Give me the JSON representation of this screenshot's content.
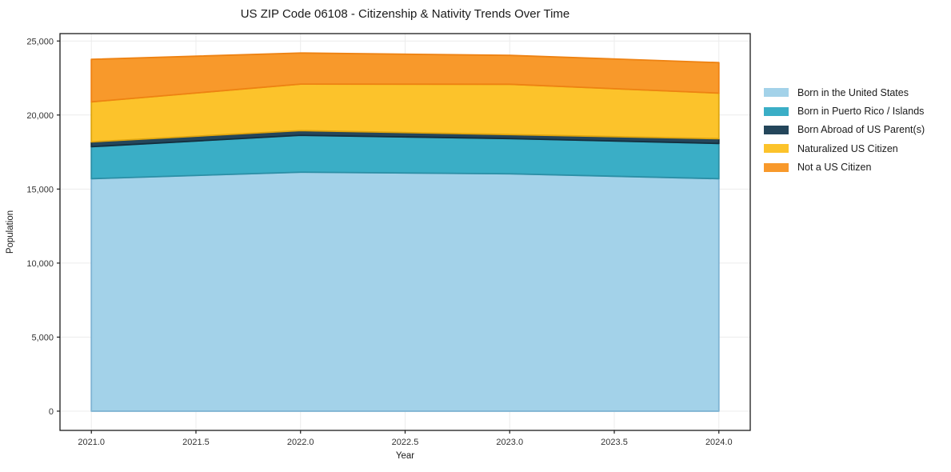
{
  "chart_data": {
    "type": "area",
    "stacked": true,
    "title": "US ZIP Code 06108 - Citizenship & Nativity Trends Over Time",
    "xlabel": "Year",
    "ylabel": "Population",
    "x": [
      2021,
      2022,
      2023,
      2024
    ],
    "series": [
      {
        "name": "Born in the United States",
        "values": [
          15700,
          16140,
          16030,
          15700
        ],
        "fill": "#A3D2E9",
        "edge": "#7FB4D3"
      },
      {
        "name": "Born in Puerto Rico / Islands",
        "values": [
          2160,
          2490,
          2380,
          2380
        ],
        "fill": "#3AAEC6",
        "edge": "#2B8FA6"
      },
      {
        "name": "Born Abroad of US Parent(s)",
        "values": [
          330,
          320,
          270,
          320
        ],
        "fill": "#24465B",
        "edge": "#142E3D"
      },
      {
        "name": "Naturalized US Citizen",
        "values": [
          2700,
          3140,
          3400,
          3080
        ],
        "fill": "#FCC32B",
        "edge": "#DFA50E"
      },
      {
        "name": "Not a US Citizen",
        "values": [
          2870,
          2100,
          1950,
          2060
        ],
        "fill": "#F8992B",
        "edge": "#EE8212"
      }
    ],
    "stacked_totals": [
      23760,
      24190,
      24030,
      23540
    ],
    "xlim": [
      2020.85,
      2024.15
    ],
    "ylim": [
      -1300,
      25500
    ],
    "xticks": {
      "values": [
        2021.0,
        2021.5,
        2022.0,
        2022.5,
        2023.0,
        2023.5,
        2024.0
      ],
      "labels": [
        "2021.0",
        "2021.5",
        "2022.0",
        "2022.5",
        "2023.0",
        "2023.5",
        "2024.0"
      ]
    },
    "yticks": {
      "values": [
        0,
        5000,
        10000,
        15000,
        20000,
        25000
      ],
      "labels": [
        "0",
        "5,000",
        "10,000",
        "15,000",
        "20,000",
        "25,000"
      ]
    },
    "grid": true,
    "grid_color": "#ececec",
    "frame_color": "#1b1b1b",
    "tick_label_color": "#333333",
    "legend_position": "right"
  }
}
